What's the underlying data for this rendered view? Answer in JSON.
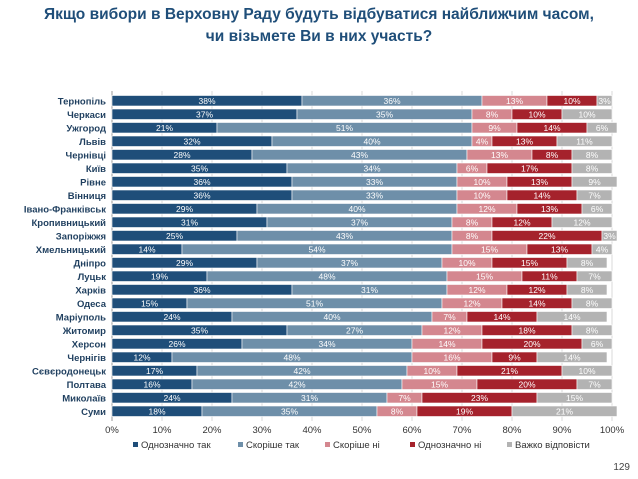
{
  "title_lines": [
    "Якщо вибори в Верховну Раду будуть відбуватися найближчим часом,",
    "чи візьмете Ви в них участь?"
  ],
  "page_number": "129",
  "colors": {
    "Однозначно так": "#1f4e79",
    "Скоріше так": "#6e8fa9",
    "Скоріше ні": "#d4878f",
    "Однозначно ні": "#a5222c",
    "Важко відповісти": "#b3b3b3"
  },
  "chart_data": {
    "type": "bar",
    "orientation": "horizontal",
    "stacked": "percent",
    "categories": [
      "Тернопіль",
      "Черкаси",
      "Ужгород",
      "Львів",
      "Чернівці",
      "Київ",
      "Рівне",
      "Вінниця",
      "Івано-Франківськ",
      "Кропивницький",
      "Запоріжжя",
      "Хмельницький",
      "Дніпро",
      "Луцьк",
      "Харків",
      "Одеса",
      "Маріуполь",
      "Житомир",
      "Херсон",
      "Чернігів",
      "Сєвєродонецьк",
      "Полтава",
      "Миколаїв",
      "Суми"
    ],
    "series": [
      {
        "name": "Однозначно так",
        "values": [
          38,
          37,
          21,
          32,
          28,
          35,
          36,
          36,
          29,
          31,
          25,
          14,
          29,
          19,
          36,
          15,
          24,
          35,
          26,
          12,
          17,
          16,
          24,
          18
        ]
      },
      {
        "name": "Скоріше так",
        "values": [
          36,
          35,
          51,
          40,
          43,
          34,
          33,
          33,
          40,
          37,
          43,
          54,
          37,
          48,
          31,
          51,
          40,
          27,
          34,
          48,
          42,
          42,
          31,
          35
        ]
      },
      {
        "name": "Скоріше ні",
        "values": [
          13,
          8,
          9,
          4,
          13,
          6,
          10,
          10,
          12,
          8,
          8,
          15,
          10,
          15,
          12,
          12,
          7,
          12,
          14,
          16,
          10,
          15,
          7,
          8
        ]
      },
      {
        "name": "Однозначно ні",
        "values": [
          10,
          10,
          14,
          13,
          8,
          17,
          13,
          14,
          13,
          12,
          22,
          13,
          15,
          11,
          12,
          14,
          14,
          18,
          20,
          9,
          21,
          20,
          23,
          19
        ]
      },
      {
        "name": "Важко відповісти",
        "values": [
          3,
          10,
          6,
          11,
          8,
          8,
          9,
          7,
          6,
          12,
          3,
          4,
          8,
          7,
          8,
          8,
          14,
          8,
          6,
          14,
          10,
          7,
          15,
          21
        ]
      }
    ],
    "xlim": [
      0,
      100
    ],
    "x_ticks": [
      "0%",
      "10%",
      "20%",
      "30%",
      "40%",
      "50%",
      "60%",
      "70%",
      "80%",
      "90%",
      "100%"
    ],
    "grid": true,
    "legend_position": "bottom"
  }
}
